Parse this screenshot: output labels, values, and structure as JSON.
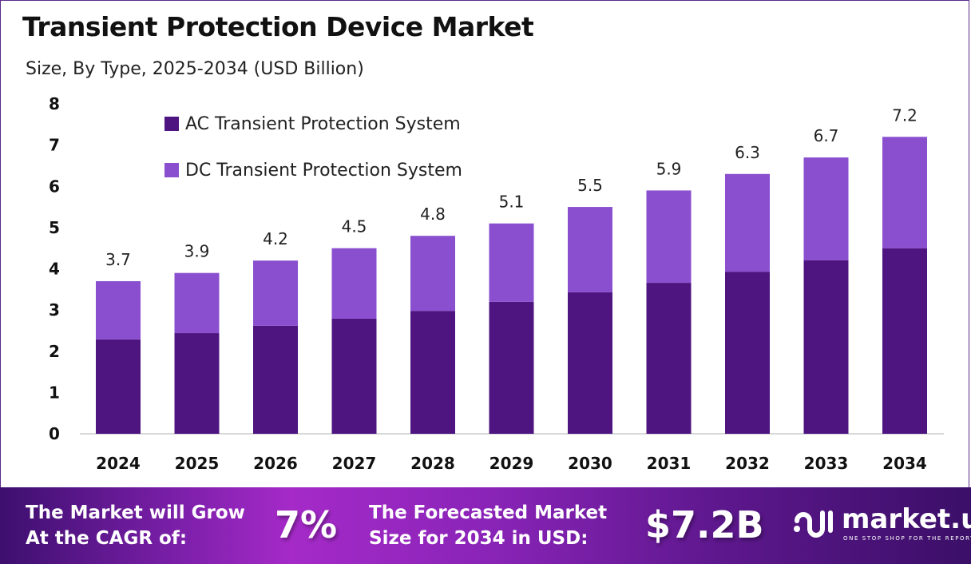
{
  "header": {
    "title": "Transient Protection Device Market",
    "subtitle": "Size, By Type, 2025-2034 (USD Billion)"
  },
  "chart_data": {
    "type": "bar",
    "stacked": true,
    "categories": [
      "2024",
      "2025",
      "2026",
      "2027",
      "2028",
      "2029",
      "2030",
      "2031",
      "2032",
      "2033",
      "2034"
    ],
    "series": [
      {
        "name": "AC Transient Protection System",
        "color": "#4e1580",
        "values": [
          2.29,
          2.44,
          2.62,
          2.79,
          2.98,
          3.2,
          3.43,
          3.66,
          3.93,
          4.21,
          4.5
        ]
      },
      {
        "name": "DC Transient Protection System",
        "color": "#8a4fcf",
        "values": [
          1.41,
          1.46,
          1.58,
          1.71,
          1.82,
          1.9,
          2.07,
          2.24,
          2.37,
          2.49,
          2.7
        ]
      }
    ],
    "totals": [
      3.7,
      3.9,
      4.2,
      4.5,
      4.8,
      5.1,
      5.5,
      5.9,
      6.3,
      6.7,
      7.2
    ],
    "total_labels": [
      "3.7",
      "3.9",
      "4.2",
      "4.5",
      "4.8",
      "5.1",
      "5.5",
      "5.9",
      "6.3",
      "6.7",
      "7.2"
    ],
    "yticks": [
      "0",
      "1",
      "2",
      "3",
      "4",
      "5",
      "6",
      "7",
      "8"
    ],
    "ylim": [
      0,
      8
    ],
    "grid": false,
    "legend": "top-left"
  },
  "footer": {
    "cagr_label_1": "The Market will Grow",
    "cagr_label_2": "At the CAGR of:",
    "cagr_value": "7%",
    "forecast_label_1": "The Forecasted Market",
    "forecast_label_2": "Size for 2034 in USD:",
    "forecast_value": "$7.2B",
    "logo_name": "market.us",
    "logo_tagline": "ONE STOP SHOP FOR THE REPORTS"
  }
}
